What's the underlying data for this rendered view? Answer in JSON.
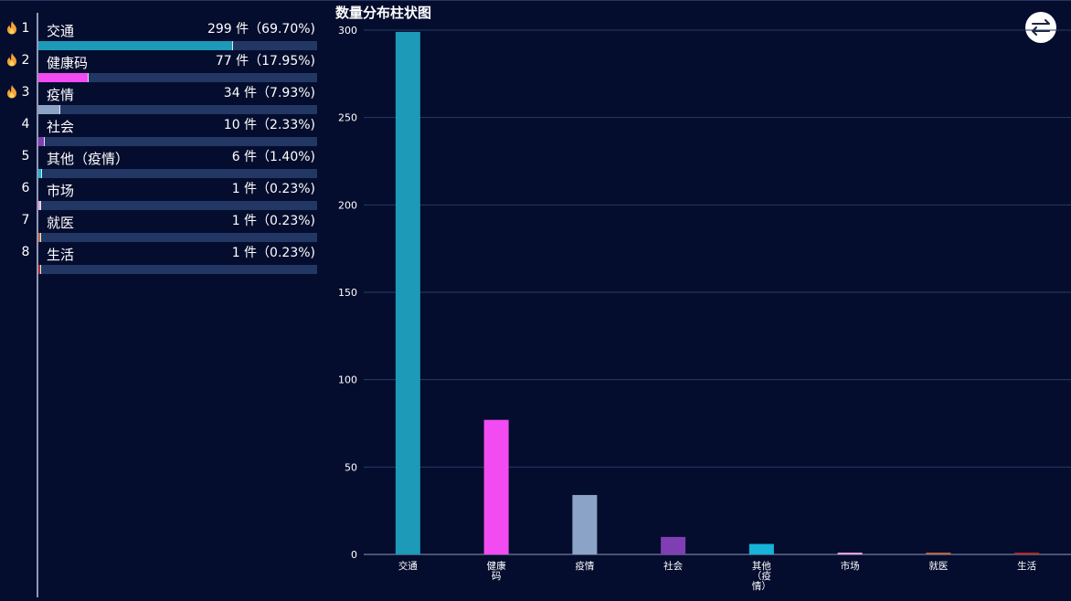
{
  "ranking": [
    {
      "rank": "1",
      "name": "交通",
      "stat": "299 件（69.70%)",
      "hot": true,
      "value": 299,
      "percent": 69.7,
      "color": "#1c9ab8"
    },
    {
      "rank": "2",
      "name": "健康码",
      "stat": "77 件（17.95%)",
      "hot": true,
      "value": 77,
      "percent": 17.95,
      "color": "#f24bf2"
    },
    {
      "rank": "3",
      "name": "疫情",
      "stat": "34 件（7.93%)",
      "hot": true,
      "value": 34,
      "percent": 7.93,
      "color": "#8ba3c6"
    },
    {
      "rank": "4",
      "name": "社会",
      "stat": "10 件（2.33%)",
      "hot": false,
      "value": 10,
      "percent": 2.33,
      "color": "#7f3fb2"
    },
    {
      "rank": "5",
      "name": "其他（疫情）",
      "stat": "6 件（1.40%)",
      "hot": false,
      "value": 6,
      "percent": 1.4,
      "color": "#15b4d8"
    },
    {
      "rank": "6",
      "name": "市场",
      "stat": "1 件（0.23%)",
      "hot": false,
      "value": 1,
      "percent": 0.23,
      "color": "#f3a5e6"
    },
    {
      "rank": "7",
      "name": "就医",
      "stat": "1 件（0.23%)",
      "hot": false,
      "value": 1,
      "percent": 0.23,
      "color": "#c06a3d"
    },
    {
      "rank": "8",
      "name": "生活",
      "stat": "1 件（0.23%)",
      "hot": false,
      "value": 1,
      "percent": 0.23,
      "color": "#b52a2a"
    }
  ],
  "colors": {
    "background": "#050d2e",
    "track": "#223763",
    "grid": "#263a66",
    "axis": "#8e98b4",
    "fire": "#f2a33a"
  },
  "icons": {
    "hot": "fire-icon",
    "switch": "swap-arrows-icon"
  },
  "chart_data": {
    "type": "bar",
    "title": "数量分布柱状图",
    "categories": [
      [
        "交通"
      ],
      [
        "健康",
        "码"
      ],
      [
        "疫情"
      ],
      [
        "社会"
      ],
      [
        "其他",
        "（疫",
        "情）"
      ],
      [
        "市场"
      ],
      [
        "就医"
      ],
      [
        "生活"
      ]
    ],
    "values": [
      299,
      77,
      34,
      10,
      6,
      1,
      1,
      1
    ],
    "colors": [
      "#1c9ab8",
      "#f24bf2",
      "#8ba3c6",
      "#7f3fb2",
      "#15b4d8",
      "#f3a5e6",
      "#c06a3d",
      "#b52a2a"
    ],
    "ylim": [
      0,
      300
    ],
    "yticks": [
      0,
      50,
      100,
      150,
      200,
      250,
      300
    ],
    "grid": true,
    "legend": "none"
  }
}
